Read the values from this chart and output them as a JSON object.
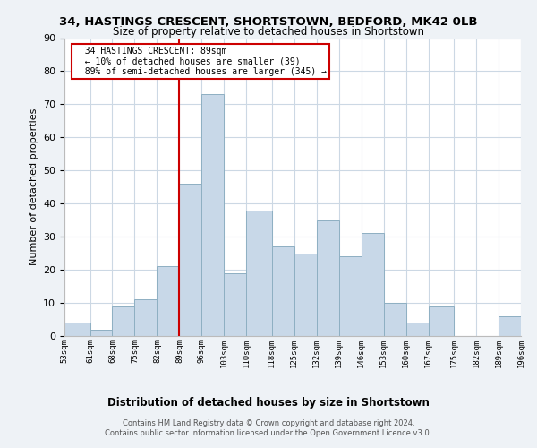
{
  "title": "34, HASTINGS CRESCENT, SHORTSTOWN, BEDFORD, MK42 0LB",
  "subtitle": "Size of property relative to detached houses in Shortstown",
  "xlabel": "Distribution of detached houses by size in Shortstown",
  "ylabel": "Number of detached properties",
  "bins": [
    53,
    61,
    68,
    75,
    82,
    89,
    96,
    103,
    110,
    118,
    125,
    132,
    139,
    146,
    153,
    160,
    167,
    175,
    182,
    189,
    196
  ],
  "bin_labels": [
    "53sqm",
    "61sqm",
    "68sqm",
    "75sqm",
    "82sqm",
    "89sqm",
    "96sqm",
    "103sqm",
    "110sqm",
    "118sqm",
    "125sqm",
    "132sqm",
    "139sqm",
    "146sqm",
    "153sqm",
    "160sqm",
    "167sqm",
    "175sqm",
    "182sqm",
    "189sqm",
    "196sqm"
  ],
  "values": [
    4,
    2,
    9,
    11,
    21,
    46,
    73,
    19,
    38,
    27,
    25,
    35,
    24,
    31,
    10,
    4,
    9,
    0,
    0,
    6
  ],
  "bar_color": "#c8d8e8",
  "bar_edge_color": "#8eafc2",
  "vline_x": 89,
  "vline_color": "#cc0000",
  "annotation_title": "34 HASTINGS CRESCENT: 89sqm",
  "annotation_line1": "← 10% of detached houses are smaller (39)",
  "annotation_line2": "89% of semi-detached houses are larger (345) →",
  "annotation_box_color": "#ffffff",
  "annotation_box_edge": "#cc0000",
  "ylim": [
    0,
    90
  ],
  "yticks": [
    0,
    10,
    20,
    30,
    40,
    50,
    60,
    70,
    80,
    90
  ],
  "footer1": "Contains HM Land Registry data © Crown copyright and database right 2024.",
  "footer2": "Contains public sector information licensed under the Open Government Licence v3.0.",
  "bg_color": "#eef2f6",
  "plot_bg_color": "#ffffff",
  "grid_color": "#ccd8e4"
}
